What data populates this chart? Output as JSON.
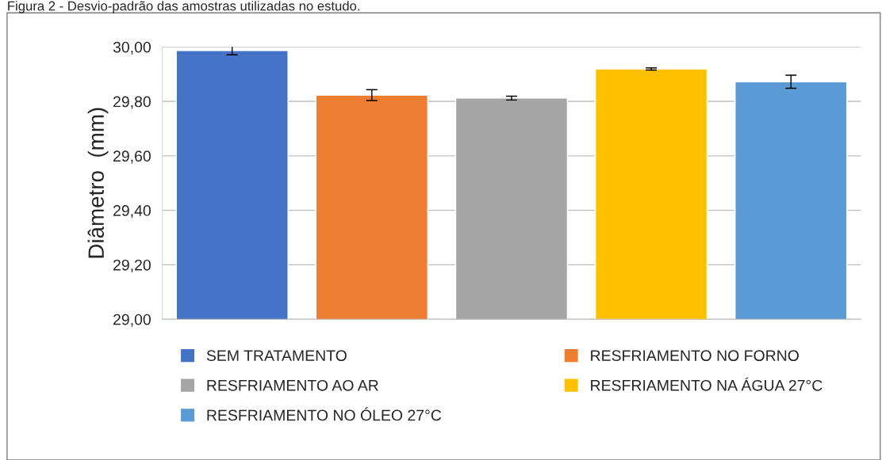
{
  "chart_data": {
    "type": "bar",
    "title": "Figura 2 - Desvio-padrão das amostras utilizadas no estudo.",
    "ylabel": "Diâmetro  (mm)",
    "categories": [
      null
    ],
    "series": [
      {
        "name": "SEM TRATAMENTO",
        "color": "#4472c4",
        "values": [
          29.987
        ],
        "errors": [
          0.016
        ]
      },
      {
        "name": "RESFRIAMENTO NO FORNO",
        "color": "#ed7d31",
        "values": [
          29.823
        ],
        "errors": [
          0.02
        ]
      },
      {
        "name": "RESFRIAMENTO AO AR",
        "color": "#a5a5a5",
        "values": [
          29.812
        ],
        "errors": [
          0.007
        ]
      },
      {
        "name": "RESFRIAMENTO NA ÁGUA 27°C",
        "color": "#ffc000",
        "values": [
          29.919
        ],
        "errors": [
          0.004
        ]
      },
      {
        "name": "RESFRIAMENTO NO ÓLEO 27°C",
        "color": "#5b9bd5",
        "values": [
          29.872
        ],
        "errors": [
          0.024
        ]
      }
    ],
    "ylim": [
      29.0,
      30.0
    ],
    "yticks": [
      {
        "value": 29.0,
        "label": "29,00"
      },
      {
        "value": 29.2,
        "label": "29,20"
      },
      {
        "value": 29.4,
        "label": "29,40"
      },
      {
        "value": 29.6,
        "label": "29,60"
      },
      {
        "value": 29.8,
        "label": "29,80"
      },
      {
        "value": 30.0,
        "label": "30,00"
      }
    ],
    "grid": "y",
    "legend": "bottom"
  }
}
